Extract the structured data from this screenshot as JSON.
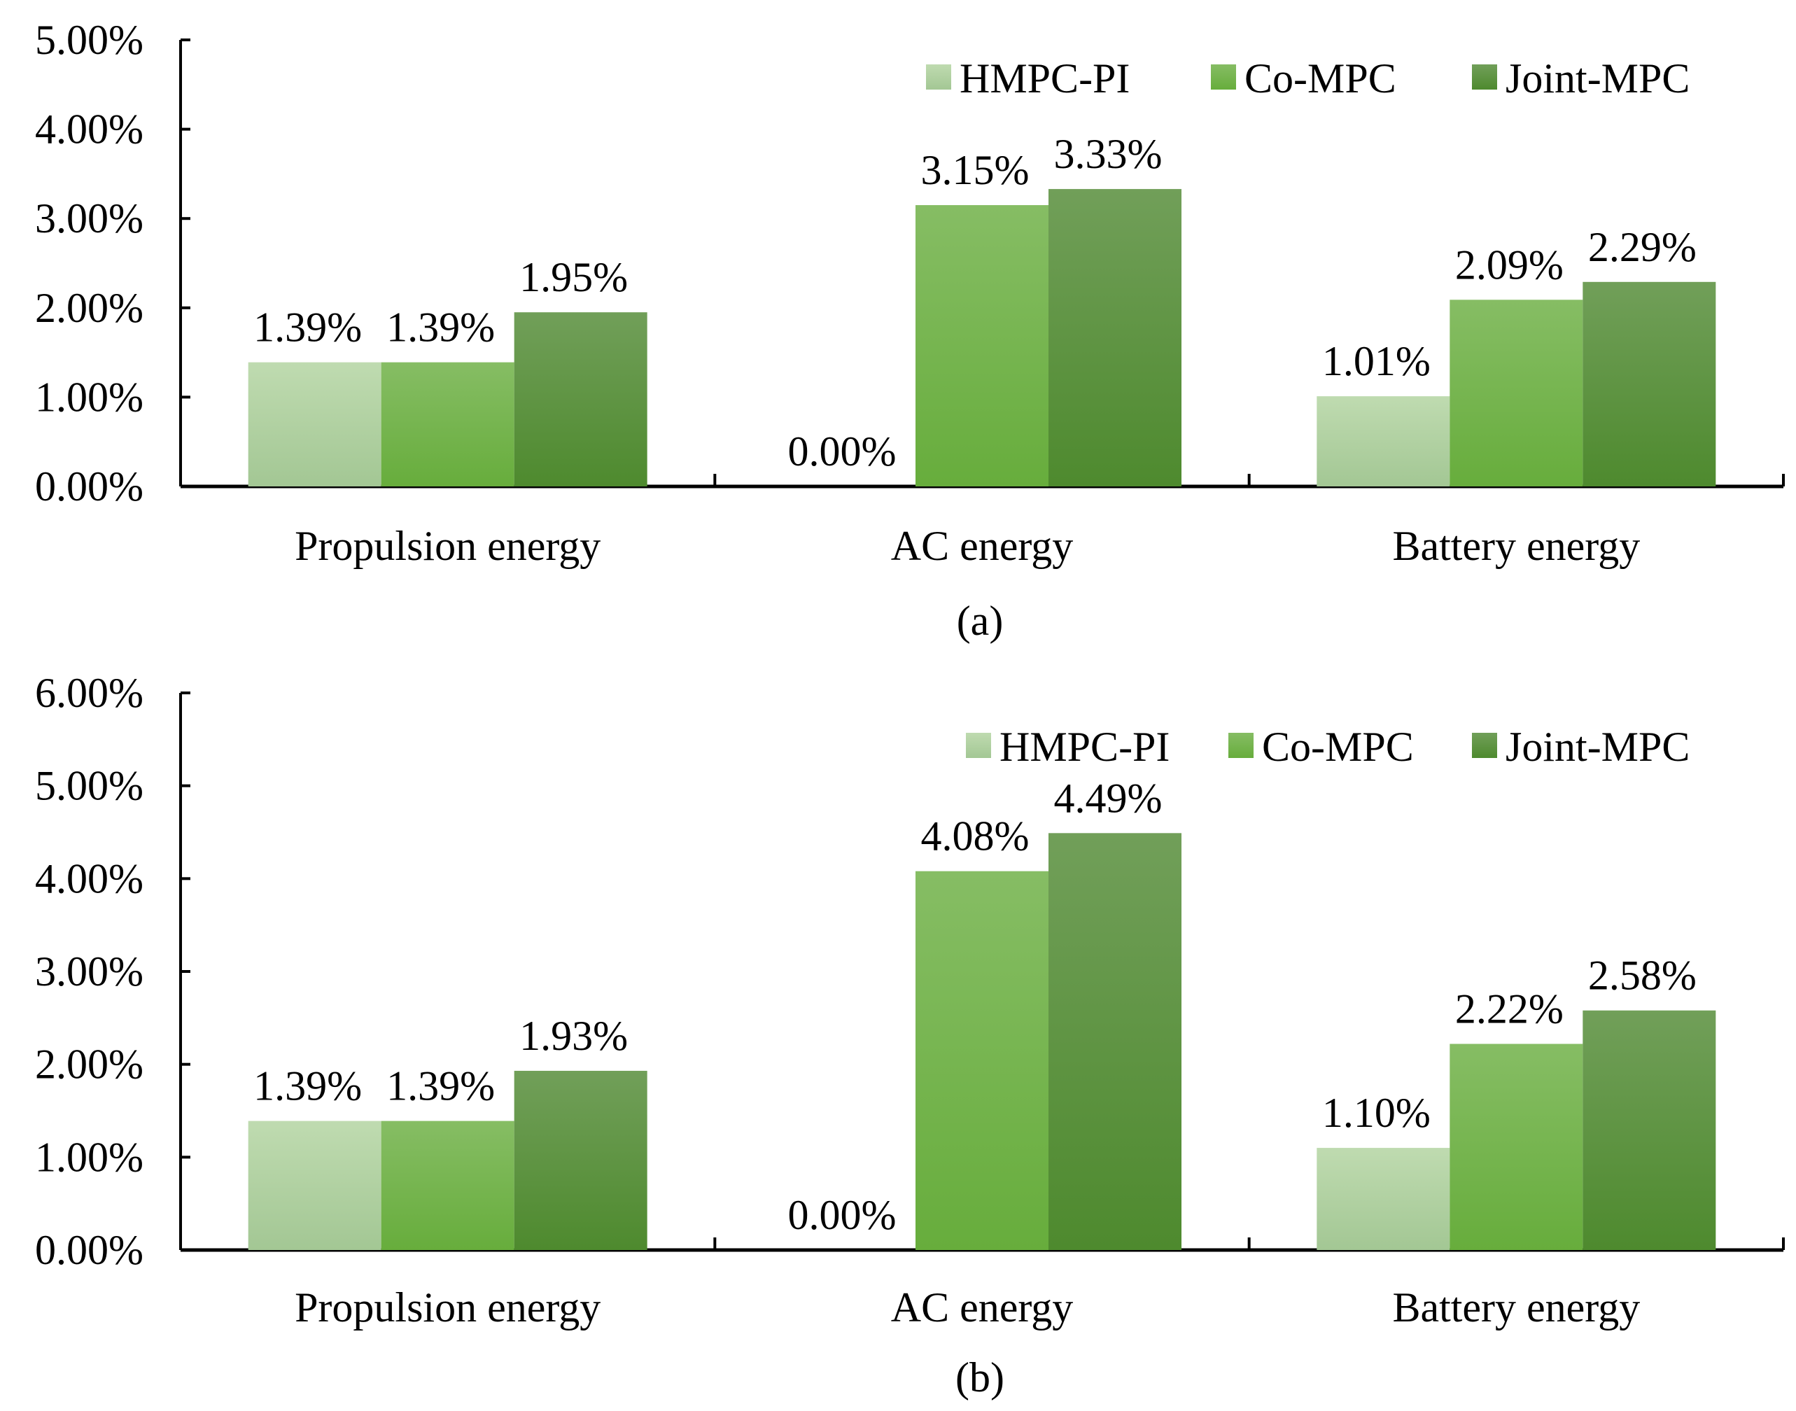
{
  "colors": {
    "HMPC-PI": [
      "#bfdbb0",
      "#a3c794"
    ],
    "Co-MPC": [
      "#86bd64",
      "#67ad3c"
    ],
    "Joint-MPC": [
      "#719f59",
      "#4e8a2e"
    ]
  },
  "chart_data": [
    {
      "type": "bar",
      "caption": "(a)",
      "categories": [
        "Propulsion energy",
        "AC energy",
        "Battery energy"
      ],
      "series": [
        {
          "name": "HMPC-PI",
          "values": [
            1.39,
            0.0,
            1.01
          ],
          "labels": [
            "1.39%",
            "0.00%",
            "1.01%"
          ]
        },
        {
          "name": "Co-MPC",
          "values": [
            1.39,
            3.15,
            2.09
          ],
          "labels": [
            "1.39%",
            "3.15%",
            "2.09%"
          ]
        },
        {
          "name": "Joint-MPC",
          "values": [
            1.95,
            3.33,
            2.29
          ],
          "labels": [
            "1.95%",
            "3.33%",
            "2.29%"
          ]
        }
      ],
      "ylim": [
        0,
        5
      ],
      "yticks": [
        0,
        1,
        2,
        3,
        4,
        5
      ],
      "ytick_labels": [
        "0.00%",
        "1.00%",
        "2.00%",
        "3.00%",
        "4.00%",
        "5.00%"
      ],
      "grid": false,
      "legend": "top-right"
    },
    {
      "type": "bar",
      "caption": "(b)",
      "categories": [
        "Propulsion energy",
        "AC energy",
        "Battery energy"
      ],
      "series": [
        {
          "name": "HMPC-PI",
          "values": [
            1.39,
            0.0,
            1.1
          ],
          "labels": [
            "1.39%",
            "0.00%",
            "1.10%"
          ]
        },
        {
          "name": "Co-MPC",
          "values": [
            1.39,
            4.08,
            2.22
          ],
          "labels": [
            "1.39%",
            "4.08%",
            "2.22%"
          ]
        },
        {
          "name": "Joint-MPC",
          "values": [
            1.93,
            4.49,
            2.58
          ],
          "labels": [
            "1.93%",
            "4.49%",
            "2.58%"
          ]
        }
      ],
      "ylim": [
        0,
        6
      ],
      "yticks": [
        0,
        1,
        2,
        3,
        4,
        5,
        6
      ],
      "ytick_labels": [
        "0.00%",
        "1.00%",
        "2.00%",
        "3.00%",
        "4.00%",
        "5.00%",
        "6.00%"
      ],
      "grid": false,
      "legend": "top-right"
    }
  ]
}
